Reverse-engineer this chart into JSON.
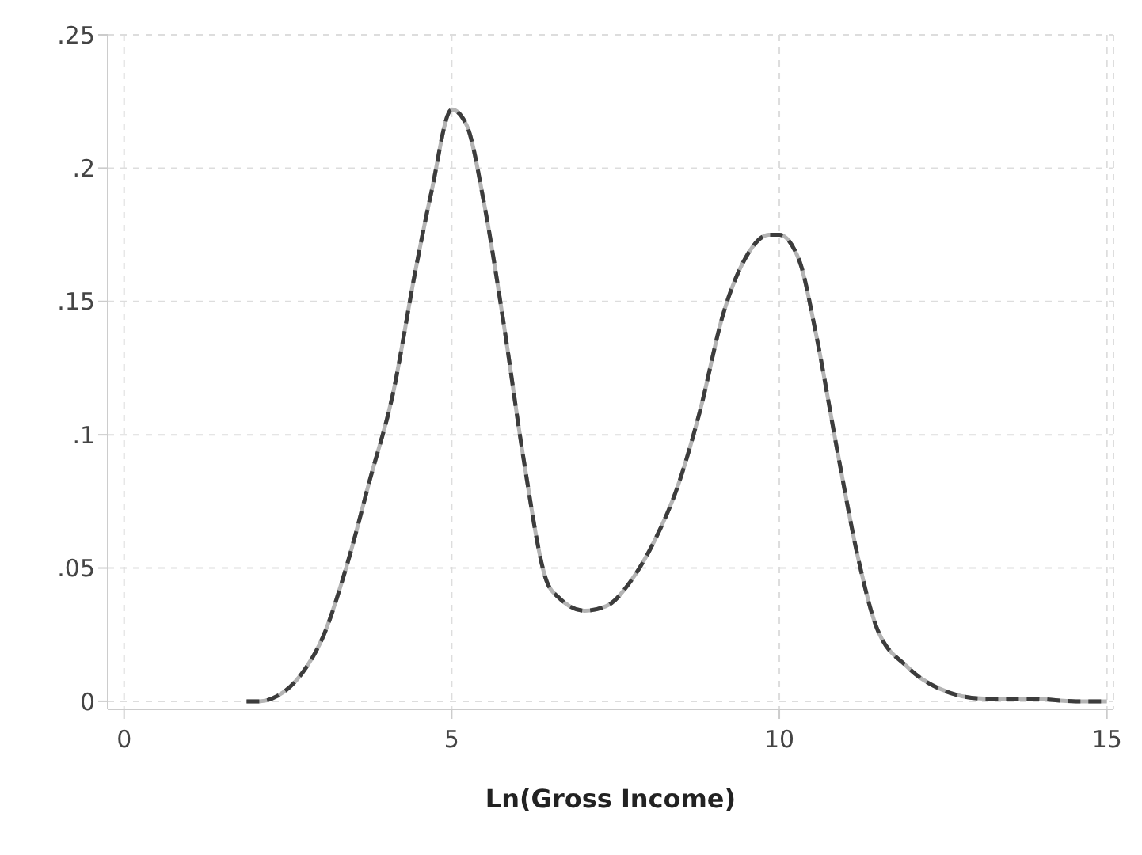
{
  "chart_data": {
    "type": "line",
    "xlabel": "Ln(Gross Income)",
    "x": [
      1.87,
      2.06,
      2.34,
      2.7,
      3.05,
      3.4,
      3.75,
      4.1,
      4.45,
      4.69,
      5.0,
      5.23,
      5.5,
      5.81,
      6.09,
      6.45,
      6.63,
      7.03,
      7.38,
      7.73,
      8.09,
      8.44,
      8.79,
      9.14,
      9.5,
      9.84,
      10.0,
      10.31,
      10.55,
      10.9,
      11.2,
      11.48,
      11.95,
      12.42,
      13.12,
      13.83,
      14.53,
      15.0
    ],
    "series": [
      {
        "color": "#b4b4b4",
        "line_style": "solid",
        "values": [
          0,
          0,
          0.002,
          0.01,
          0.025,
          0.051,
          0.083,
          0.115,
          0.162,
          0.191,
          0.222,
          0.216,
          0.186,
          0.139,
          0.092,
          0.045,
          0.039,
          0.034,
          0.036,
          0.045,
          0.06,
          0.08,
          0.109,
          0.145,
          0.167,
          0.175,
          0.175,
          0.165,
          0.139,
          0.092,
          0.054,
          0.028,
          0.013,
          0.005,
          0.001,
          0.001,
          0,
          0
        ]
      },
      {
        "color": "#3c3c3c",
        "line_style": "dashed",
        "values": [
          0,
          0,
          0.002,
          0.01,
          0.025,
          0.051,
          0.083,
          0.115,
          0.162,
          0.191,
          0.222,
          0.216,
          0.186,
          0.139,
          0.092,
          0.045,
          0.039,
          0.034,
          0.036,
          0.045,
          0.06,
          0.08,
          0.109,
          0.145,
          0.167,
          0.175,
          0.175,
          0.165,
          0.139,
          0.092,
          0.054,
          0.028,
          0.013,
          0.005,
          0.001,
          0.001,
          0,
          0
        ]
      }
    ],
    "xlim": [
      -0.25,
      15.1
    ],
    "xticks": [
      0,
      5,
      10,
      15
    ],
    "ylim": [
      -0.003,
      0.25
    ],
    "yticks": [
      {
        "value": 0,
        "label": "0"
      },
      {
        "value": 0.05,
        "label": ".05"
      },
      {
        "value": 0.1,
        "label": ".1"
      },
      {
        "value": 0.15,
        "label": ".15"
      },
      {
        "value": 0.2,
        "label": ".2"
      },
      {
        "value": 0.25,
        "label": ".25"
      }
    ],
    "grid": true,
    "legend": false
  }
}
